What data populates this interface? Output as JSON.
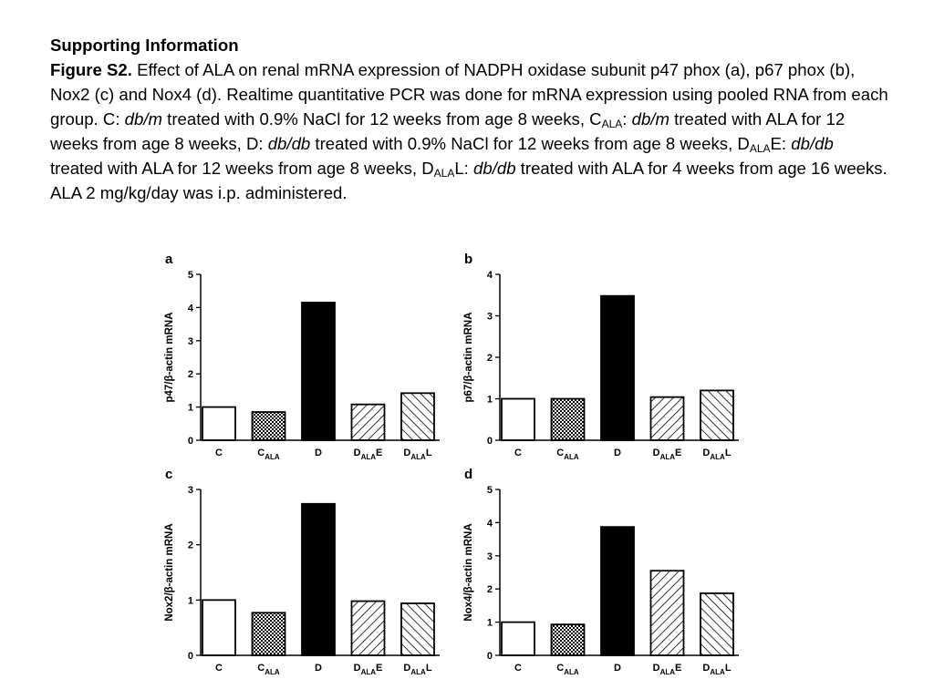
{
  "caption": {
    "heading": "Supporting Information",
    "figure_label": "Figure S2.",
    "runs": [
      {
        "t": " Effect of ALA on renal mRNA expression of NADPH oxidase subunit p47 phox (a), p67 phox (b), Nox2 (c) and Nox4 (d). Realtime quantitative PCR was done for mRNA expression using pooled RNA from each group. C: "
      },
      {
        "t": "db/m",
        "s": "i"
      },
      {
        "t": " treated with 0.9% NaCl for 12 weeks from age 8 weeks, C"
      },
      {
        "t": "ALA",
        "s": "sub"
      },
      {
        "t": ": "
      },
      {
        "t": "db/m",
        "s": "i"
      },
      {
        "t": " treated with ALA for 12 weeks from age 8 weeks, D: "
      },
      {
        "t": "db/db",
        "s": "i"
      },
      {
        "t": " treated with 0.9% NaCl for 12 weeks from age 8 weeks, D"
      },
      {
        "t": "ALA",
        "s": "sub"
      },
      {
        "t": "E: "
      },
      {
        "t": "db/db",
        "s": "i"
      },
      {
        "t": " treated with ALA for 12 weeks from age 8 weeks, D"
      },
      {
        "t": "ALA",
        "s": "sub"
      },
      {
        "t": "L: "
      },
      {
        "t": "db/db",
        "s": "i"
      },
      {
        "t": " treated with ALA for 4 weeks from age 16 weeks. ALA 2 mg/kg/day was i.p. administered."
      }
    ]
  },
  "colors": {
    "ink": "#000000",
    "fill_white": "#ffffff"
  },
  "chart_data": [
    {
      "panel": "a",
      "type": "bar",
      "ylabel": "p47/β-actin mRNA",
      "ylim": [
        0,
        5
      ],
      "yticks": [
        0,
        1,
        2,
        3,
        4,
        5
      ],
      "categories": [
        {
          "main": "C",
          "sub": "",
          "suffix": ""
        },
        {
          "main": "C",
          "sub": "ALA",
          "suffix": ""
        },
        {
          "main": "D",
          "sub": "",
          "suffix": ""
        },
        {
          "main": "D",
          "sub": "ALA",
          "suffix": "E"
        },
        {
          "main": "D",
          "sub": "ALA",
          "suffix": "L"
        }
      ],
      "values": [
        1.0,
        0.85,
        4.15,
        1.08,
        1.42
      ],
      "fills": [
        "white",
        "checker",
        "black",
        "hatch-forward",
        "hatch-back"
      ]
    },
    {
      "panel": "b",
      "type": "bar",
      "ylabel": "p67/β-actin mRNA",
      "ylim": [
        0,
        4
      ],
      "yticks": [
        0,
        1,
        2,
        3,
        4
      ],
      "categories": [
        {
          "main": "C",
          "sub": "",
          "suffix": ""
        },
        {
          "main": "C",
          "sub": "ALA",
          "suffix": ""
        },
        {
          "main": "D",
          "sub": "",
          "suffix": ""
        },
        {
          "main": "D",
          "sub": "ALA",
          "suffix": "E"
        },
        {
          "main": "D",
          "sub": "ALA",
          "suffix": "L"
        }
      ],
      "values": [
        1.0,
        1.0,
        3.48,
        1.04,
        1.2
      ],
      "fills": [
        "white",
        "checker",
        "black",
        "hatch-forward",
        "hatch-back"
      ]
    },
    {
      "panel": "c",
      "type": "bar",
      "ylabel": "Nox2/β-actin mRNA",
      "ylim": [
        0,
        3
      ],
      "yticks": [
        0,
        1,
        2,
        3
      ],
      "categories": [
        {
          "main": "C",
          "sub": "",
          "suffix": ""
        },
        {
          "main": "C",
          "sub": "ALA",
          "suffix": ""
        },
        {
          "main": "D",
          "sub": "",
          "suffix": ""
        },
        {
          "main": "D",
          "sub": "ALA",
          "suffix": "E"
        },
        {
          "main": "D",
          "sub": "ALA",
          "suffix": "L"
        }
      ],
      "values": [
        1.0,
        0.77,
        2.74,
        0.98,
        0.94
      ],
      "fills": [
        "white",
        "checker",
        "black",
        "hatch-forward",
        "hatch-back"
      ]
    },
    {
      "panel": "d",
      "type": "bar",
      "ylabel": "Nox4/β-actin mRNA",
      "ylim": [
        0,
        5
      ],
      "yticks": [
        0,
        1,
        2,
        3,
        4,
        5
      ],
      "categories": [
        {
          "main": "C",
          "sub": "",
          "suffix": ""
        },
        {
          "main": "C",
          "sub": "ALA",
          "suffix": ""
        },
        {
          "main": "D",
          "sub": "",
          "suffix": ""
        },
        {
          "main": "D",
          "sub": "ALA",
          "suffix": "E"
        },
        {
          "main": "D",
          "sub": "ALA",
          "suffix": "L"
        }
      ],
      "values": [
        1.0,
        0.93,
        3.87,
        2.55,
        1.87
      ],
      "fills": [
        "white",
        "checker",
        "black",
        "hatch-forward",
        "hatch-back"
      ]
    }
  ]
}
